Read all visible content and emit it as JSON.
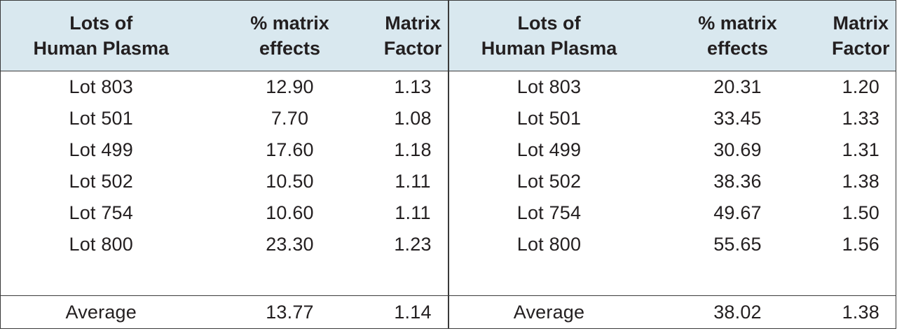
{
  "table": {
    "header": {
      "lots": "Lots of\nHuman Plasma",
      "pct": "% matrix\neffects",
      "mf": "Matrix\nFactor"
    },
    "left": [
      {
        "lot": "Lot 803",
        "pct": "12.90",
        "mf": "1.13"
      },
      {
        "lot": "Lot 501",
        "pct": "7.70",
        "mf": "1.08"
      },
      {
        "lot": "Lot 499",
        "pct": "17.60",
        "mf": "1.18"
      },
      {
        "lot": "Lot 502",
        "pct": "10.50",
        "mf": "1.11"
      },
      {
        "lot": "Lot 754",
        "pct": "10.60",
        "mf": "1.11"
      },
      {
        "lot": "Lot 800",
        "pct": "23.30",
        "mf": "1.23"
      }
    ],
    "right": [
      {
        "lot": "Lot 803",
        "pct": "20.31",
        "mf": "1.20"
      },
      {
        "lot": "Lot 501",
        "pct": "33.45",
        "mf": "1.33"
      },
      {
        "lot": "Lot 499",
        "pct": "30.69",
        "mf": "1.31"
      },
      {
        "lot": "Lot 502",
        "pct": "38.36",
        "mf": "1.38"
      },
      {
        "lot": "Lot 754",
        "pct": "49.67",
        "mf": "1.50"
      },
      {
        "lot": "Lot 800",
        "pct": "55.65",
        "mf": "1.56"
      }
    ],
    "left_average": {
      "label": "Average",
      "pct": "13.77",
      "mf": "1.14"
    },
    "right_average": {
      "label": "Average",
      "pct": "38.02",
      "mf": "1.38"
    }
  },
  "colors": {
    "header_bg": "#d9e8ef",
    "border": "#3a3a3a",
    "text": "#231f20"
  }
}
